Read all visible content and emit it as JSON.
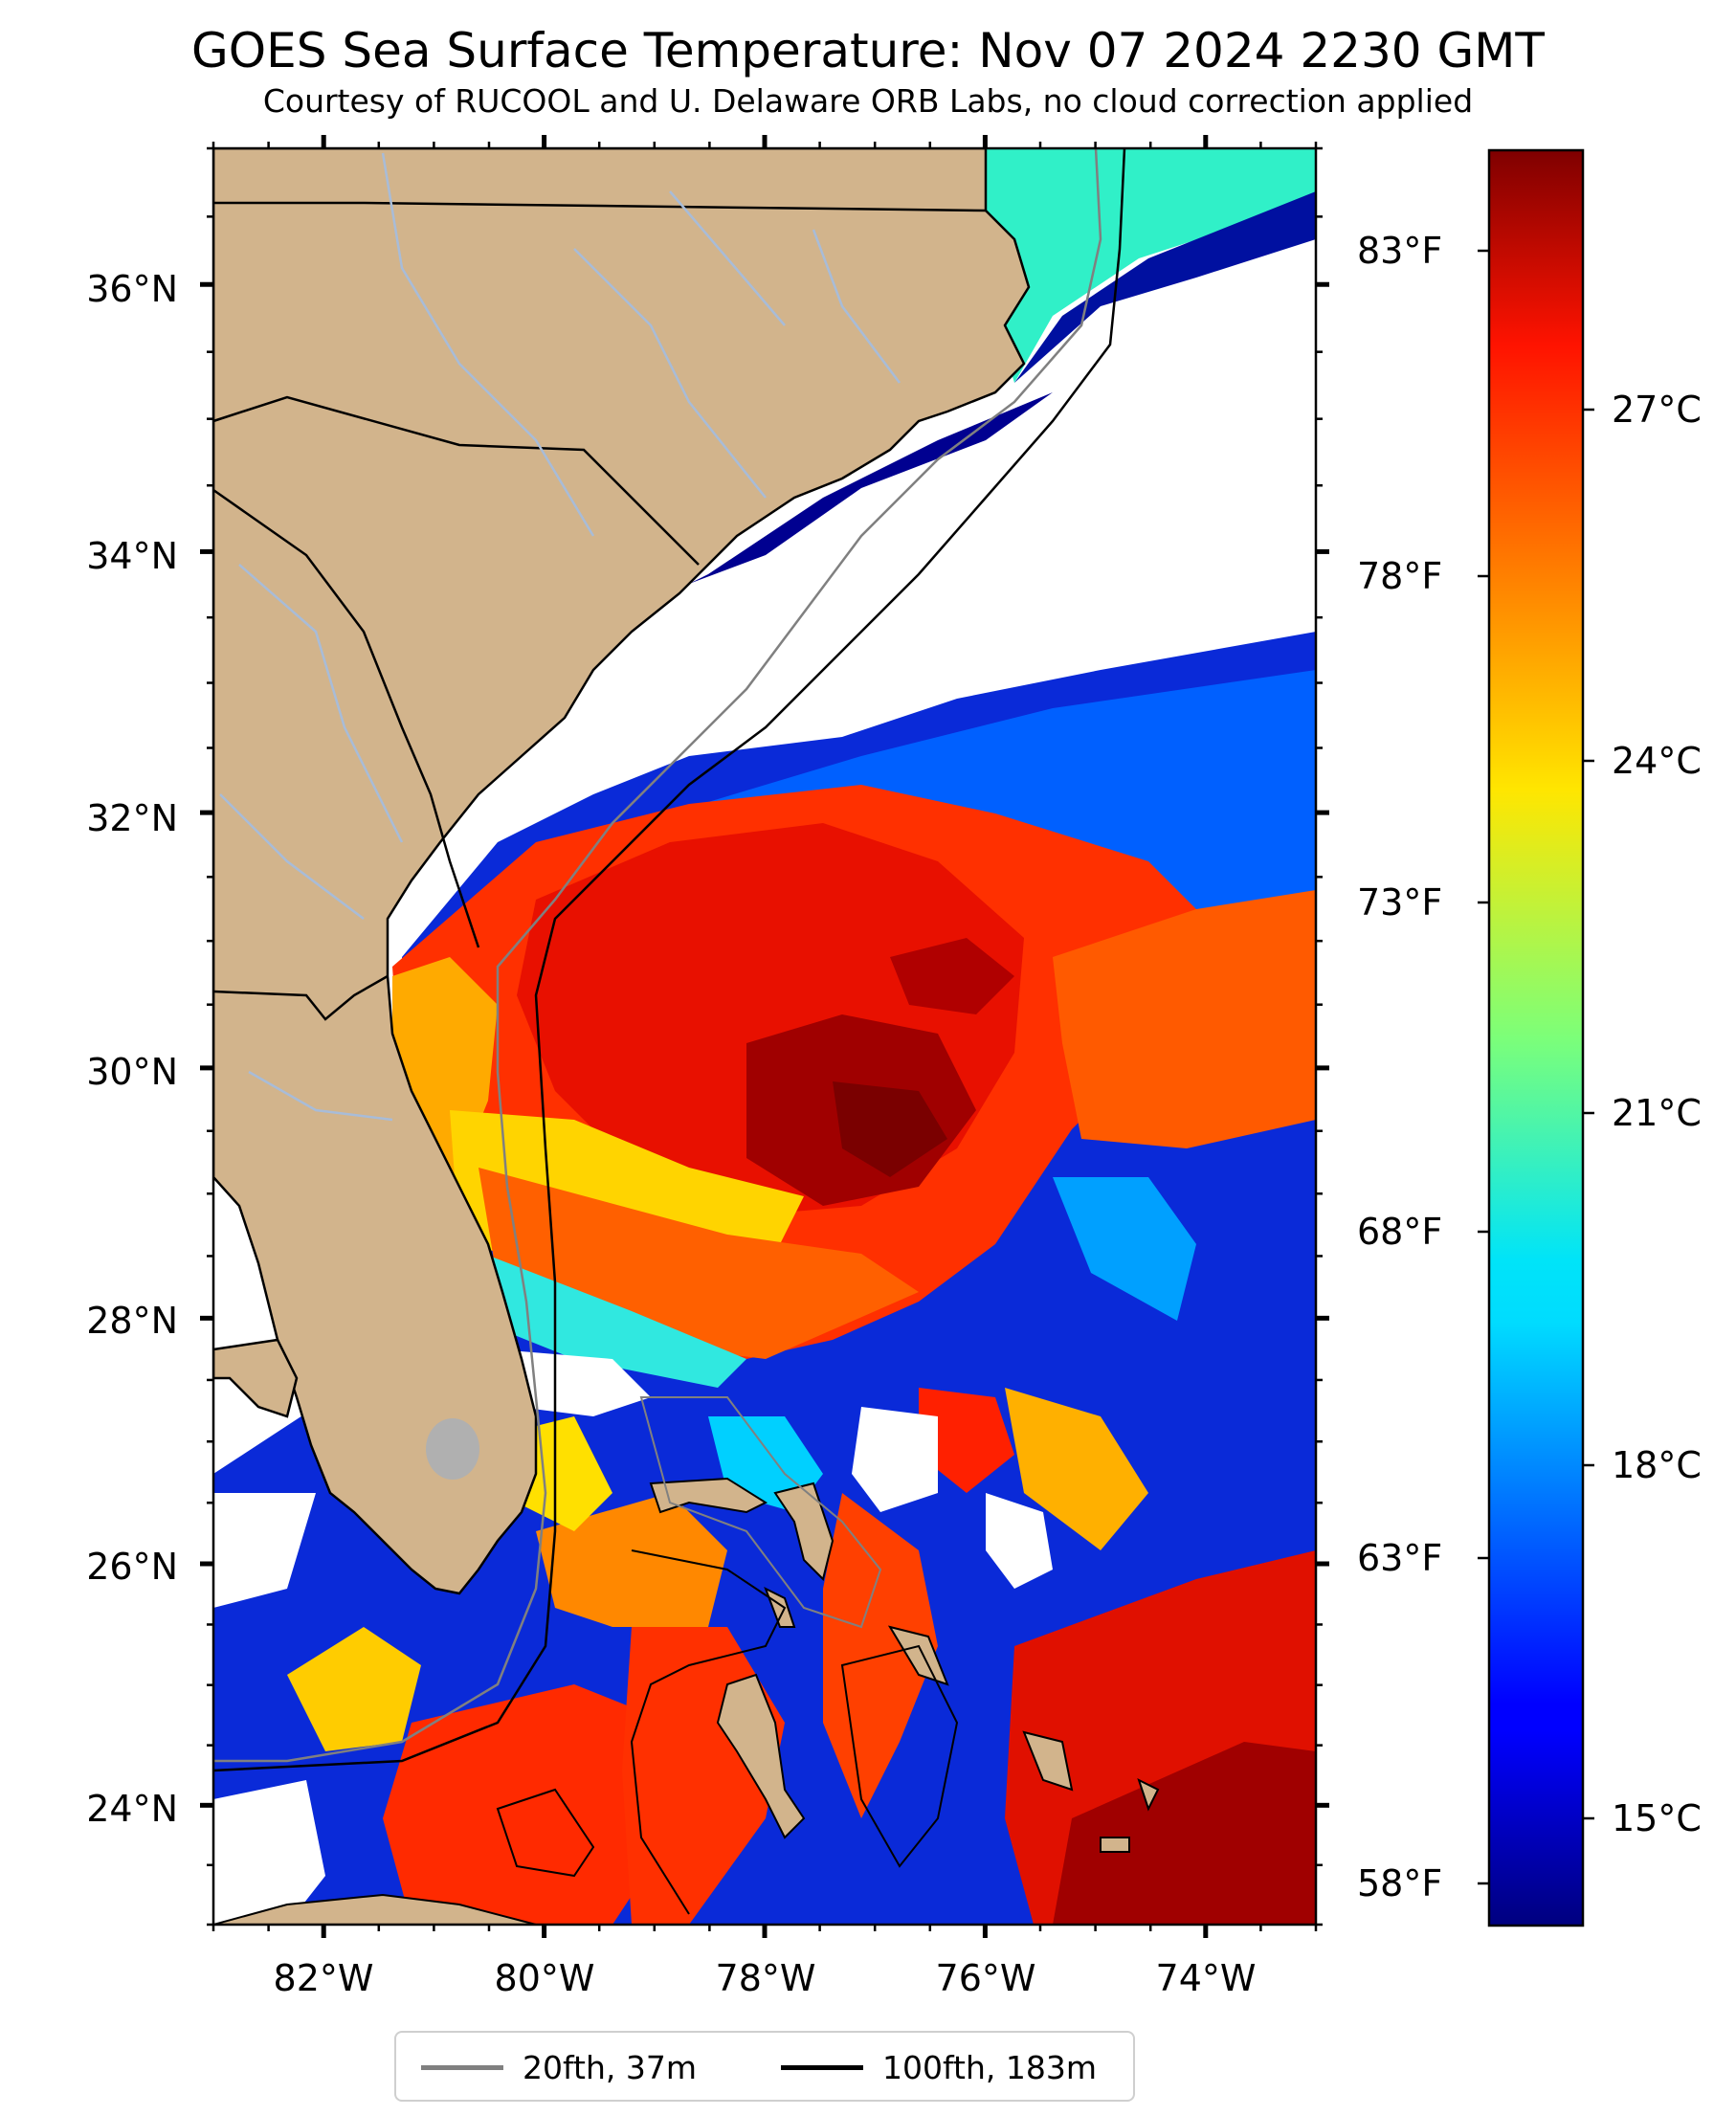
{
  "title": "GOES Sea Surface Temperature: Nov 07 2024 2230 GMT",
  "subtitle": "Courtesy of RUCOOL and U. Delaware ORB Labs, no cloud correction applied",
  "colors": {
    "land": "#d2b48c",
    "cloud_mask": "#ffffff",
    "contour_20fth": "#808080",
    "contour_100fth": "#000000",
    "lake": "#b0b0b0",
    "rivers": "#a8bcd8"
  },
  "map": {
    "lon_range": [
      -83,
      -73
    ],
    "lat_range": [
      23,
      37
    ],
    "lat_ticks": [
      "36°N",
      "34°N",
      "32°N",
      "30°N",
      "28°N",
      "26°N",
      "24°N"
    ],
    "lon_ticks": [
      "82°W",
      "80°W",
      "78°W",
      "76°W",
      "74°W"
    ]
  },
  "colorbar": {
    "range_c": [
      13.8,
      29.4
    ],
    "celsius_ticks": [
      "27°C",
      "24°C",
      "21°C",
      "18°C",
      "15°C"
    ],
    "fahrenheit_ticks": [
      "83°F",
      "78°F",
      "73°F",
      "68°F",
      "63°F",
      "58°F"
    ],
    "colormap": "jet"
  },
  "legend": {
    "items": [
      {
        "label": "20fth, 37m",
        "color": "#808080"
      },
      {
        "label": "100fth, 183m",
        "color": "#000000"
      }
    ]
  }
}
